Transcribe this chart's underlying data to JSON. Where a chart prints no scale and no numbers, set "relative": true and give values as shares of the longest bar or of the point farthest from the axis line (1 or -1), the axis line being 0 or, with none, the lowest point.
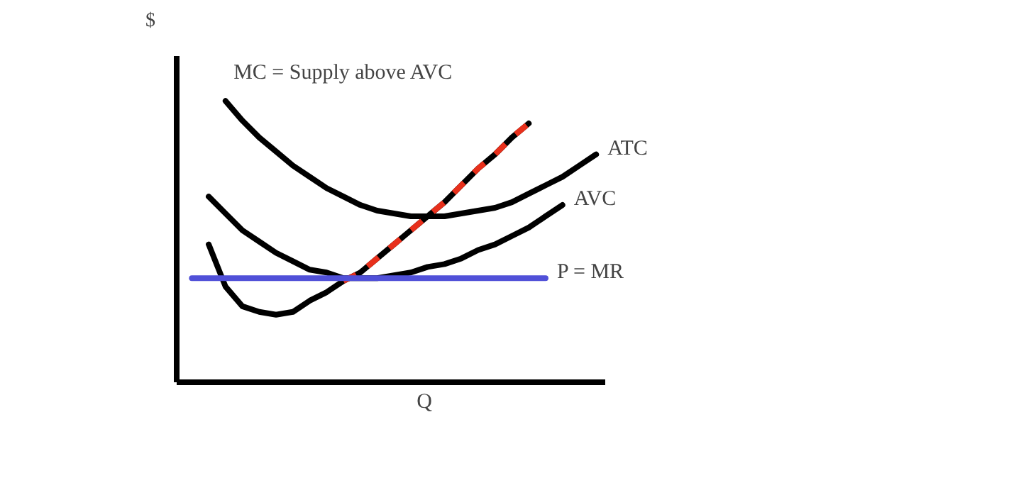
{
  "chart_data": {
    "type": "line",
    "relative": true,
    "xlabel": "Q",
    "ylabel": "$",
    "annotations": [
      "MC = Supply above AVC"
    ],
    "categories": [
      null,
      null,
      null,
      null,
      null,
      null,
      null,
      null,
      null,
      null,
      null,
      null,
      null,
      null,
      null,
      null,
      null,
      null,
      null,
      null,
      null,
      null,
      null,
      null,
      null
    ],
    "line_style": "solid",
    "marker": "none",
    "series": [
      {
        "name": "ATC",
        "color": "#000000",
        "values": [
          null,
          null,
          1.0,
          0.93,
          0.87,
          0.82,
          0.77,
          0.73,
          0.69,
          0.66,
          0.63,
          0.61,
          0.6,
          0.59,
          0.59,
          0.59,
          0.6,
          0.61,
          0.62,
          0.64,
          0.67,
          0.7,
          0.73,
          0.77,
          0.81
        ]
      },
      {
        "name": "AVC",
        "color": "#000000",
        "values": [
          null,
          0.66,
          0.6,
          0.54,
          0.5,
          0.46,
          0.43,
          0.4,
          0.39,
          0.37,
          0.37,
          0.37,
          0.38,
          0.39,
          0.41,
          0.42,
          0.44,
          0.47,
          0.49,
          0.52,
          0.55,
          0.59,
          0.63,
          null,
          null
        ]
      },
      {
        "color": "#000000",
        "values": [
          null,
          0.49,
          0.34,
          0.27,
          0.25,
          0.24,
          0.25,
          0.29,
          0.32,
          0.36,
          0.39,
          0.44,
          0.49,
          0.54,
          0.59,
          0.64,
          0.7,
          0.76,
          0.81,
          0.87,
          0.92,
          null,
          null,
          null,
          null
        ]
      },
      {
        "color": "#e8301c",
        "line_style": "dashed",
        "values": [
          null,
          null,
          null,
          null,
          null,
          null,
          null,
          null,
          null,
          0.36,
          0.39,
          0.44,
          0.49,
          0.54,
          0.59,
          0.64,
          0.7,
          0.76,
          0.81,
          0.87,
          0.92,
          null,
          null,
          null,
          null
        ]
      },
      {
        "name": "P = MR",
        "color": "#5050d8",
        "values": [
          0.37,
          0.37,
          0.37,
          0.37,
          0.37,
          0.37,
          0.37,
          0.37,
          0.37,
          0.37,
          0.37,
          0.37,
          0.37,
          0.37,
          0.37,
          0.37,
          0.37,
          0.37,
          0.37,
          0.37,
          0.37,
          0.37,
          null,
          null,
          null
        ]
      }
    ]
  }
}
